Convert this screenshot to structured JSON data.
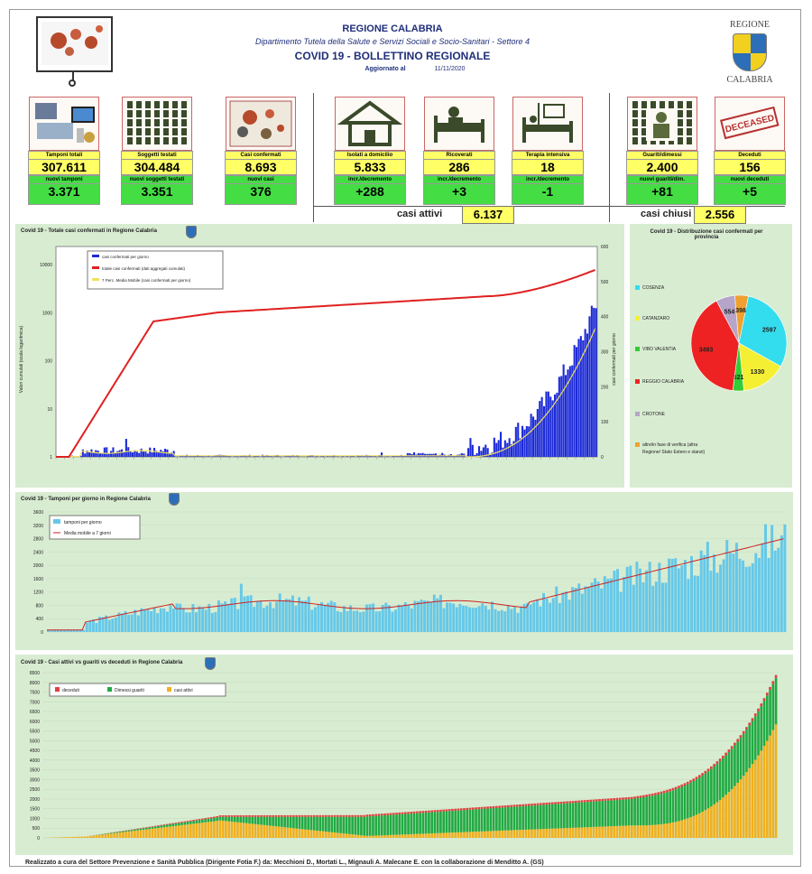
{
  "header": {
    "region": "REGIONE CALABRIA",
    "department": "Dipartimento Tutela della Salute e Servizi Sociali e Socio-Sanitari - Settore 4",
    "bulletin": "COVID 19 - BOLLETTINO REGIONALE",
    "updated_label": "Aggiornato al",
    "updated_date": "11/11/2020",
    "logo_top": "REGIONE",
    "logo_bottom": "CALABRIA"
  },
  "stats": [
    {
      "label": "Tamponi totali",
      "value": "307.611",
      "delta_label": "nuovi tamponi",
      "delta": "3.371",
      "icon": "lab-icon"
    },
    {
      "label": "Soggetti testati",
      "value": "304.484",
      "delta_label": "nuovi soggetti testati",
      "delta": "3.351",
      "icon": "people-grid-icon"
    },
    {
      "label": "Casi confermati",
      "value": "8.693",
      "delta_label": "nuovi casi",
      "delta": "376",
      "icon": "virus-people-icon"
    },
    {
      "label": "Isolati a domicilio",
      "value": "5.833",
      "delta_label": "incr./decremento",
      "delta": "+288",
      "icon": "house-icon"
    },
    {
      "label": "Ricoverati",
      "value": "286",
      "delta_label": "incr./decremento",
      "delta": "+3",
      "icon": "hospital-bed-icon"
    },
    {
      "label": "Terapia intensiva",
      "value": "18",
      "delta_label": "incr./decremento",
      "delta": "-1",
      "icon": "icu-bed-icon"
    },
    {
      "label": "Guariti/dimessi",
      "value": "2.400",
      "delta_label": "nuovi guariti/dim.",
      "delta": "+81",
      "icon": "recovered-icon"
    },
    {
      "label": "Deceduti",
      "value": "156",
      "delta_label": "nuovi deceduti",
      "delta": "+5",
      "icon": "deceased-stamp-icon"
    }
  ],
  "deceased_stamp": "DECEASED",
  "totals": {
    "attivi_label": "casi attivi",
    "attivi_value": "6.137",
    "chiusi_label": "casi chiusi",
    "chiusi_value": "2.556"
  },
  "chart1": {
    "title": "Covid 19 - Totale casi confermati in Regione Calabria",
    "legend": [
      "casi confermati per giorno",
      "totale casi confermati (dati aggregati cumulati)",
      "7 Perc. Media Mobile (casi confermati per giorno)"
    ],
    "left_axis_label": "Valori cumulati (scala logaritmica)",
    "right_axis_label": "casi confermati per giorno",
    "left_ticks": [
      "10000",
      "1000",
      "100",
      "10",
      "1"
    ],
    "right_ticks": [
      "600",
      "500",
      "400",
      "300",
      "200",
      "100",
      "0"
    ],
    "colors": {
      "bars": "#1d2bd6",
      "cumulative": "#e02020",
      "moving_avg": "#f0e060"
    }
  },
  "chart2": {
    "title": "Covid 19 - Distribuzione casi confermati per provincia",
    "legend": [
      "COSENZA",
      "CATANZARO",
      "VIBO VALENTIA",
      "REGGIO CALABRIA",
      "CROTONE",
      "altre/in fase di verifica (altra Regione/ Stato Estero e stanzi)"
    ],
    "values": [
      2597,
      1330,
      321,
      3493,
      554,
      398
    ],
    "value_labels": [
      "2597",
      "1330",
      "321",
      "3493",
      "554",
      "398"
    ],
    "colors": [
      "#33ddee",
      "#f5ef33",
      "#33cc33",
      "#ee2222",
      "#b6a5c8",
      "#f0a030"
    ]
  },
  "chart3": {
    "title": "Covid 19 - Tamponi per giorno in Regione Calabria",
    "legend": [
      "tamponi per giorno",
      "Media mobile a 7 giorni"
    ],
    "y_ticks": [
      "3600",
      "3200",
      "2800",
      "2400",
      "2000",
      "1600",
      "1200",
      "800",
      "400",
      "0"
    ],
    "colors": {
      "bars": "#66c8e8",
      "avg": "#cc2222"
    }
  },
  "chart4": {
    "title": "Covid 19 - Casi attivi vs guariti vs deceduti in Regione Calabria",
    "legend": [
      "deceduti",
      "Dimessi guariti",
      "casi attivi"
    ],
    "y_ticks": [
      "8500",
      "8000",
      "7500",
      "7000",
      "6500",
      "6000",
      "5500",
      "5000",
      "4500",
      "4000",
      "3500",
      "3000",
      "2500",
      "2000",
      "1500",
      "1000",
      "500",
      "0"
    ],
    "colors": {
      "deceduti": "#e04040",
      "guariti": "#22aa44",
      "attivi": "#f0b020"
    }
  },
  "footer": "Realizzato a cura del Settore Prevenzione e Sanità Pubblica (Dirigente Fotia F.) da: Mecchioni D., Mortati L., Mignauli A. Malecane E. con la collaborazione di Menditto A. (GS)"
}
